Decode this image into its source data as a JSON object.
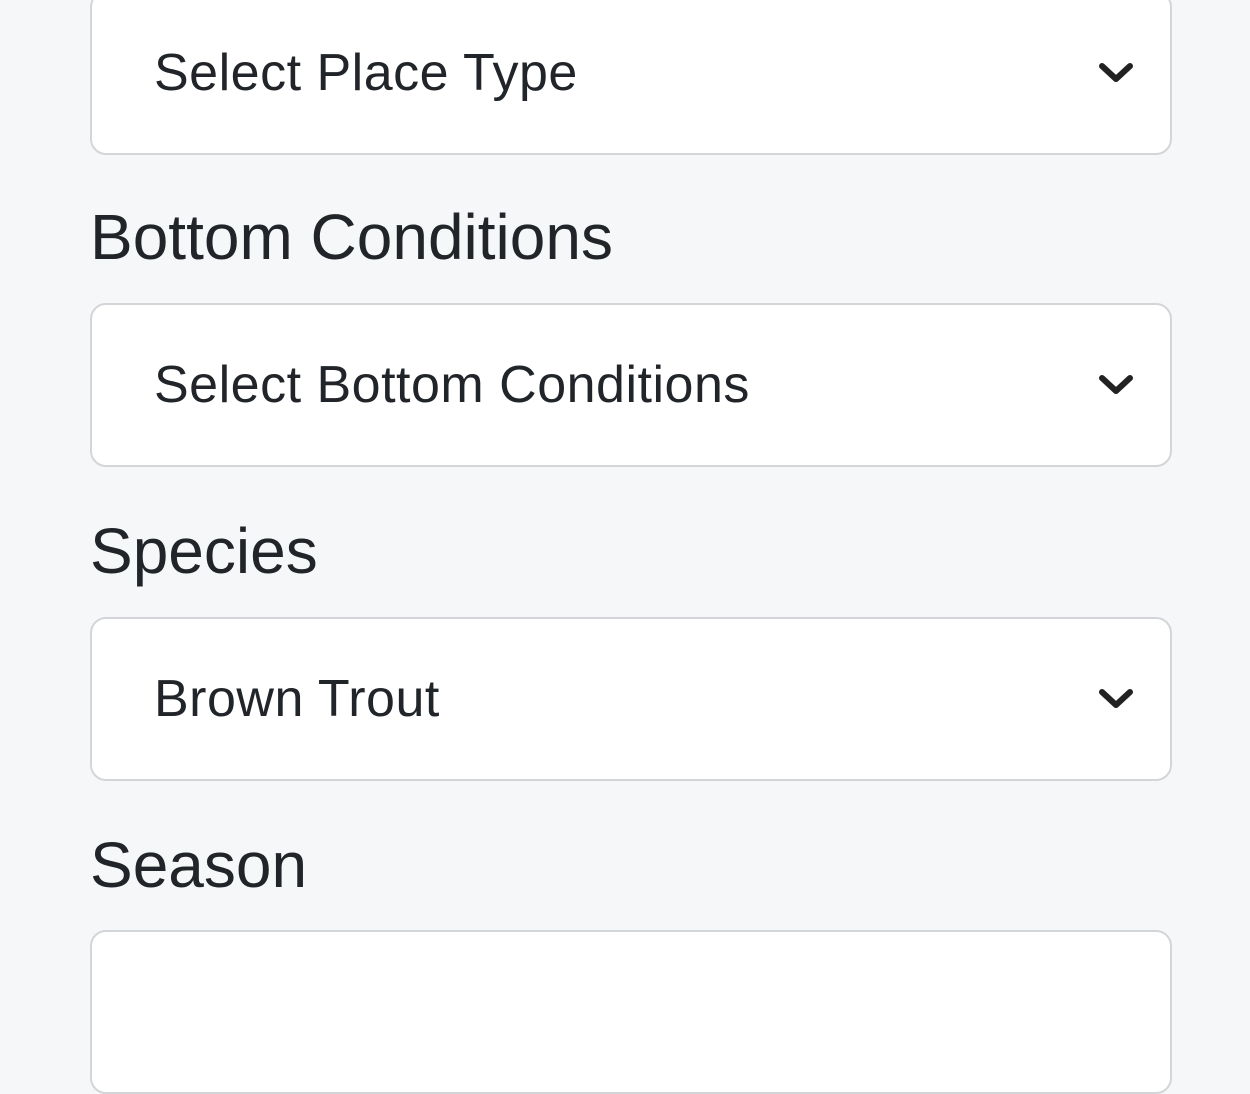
{
  "fields": [
    {
      "label": "",
      "value": "Select Place Type",
      "icon": "chevron-down-icon"
    },
    {
      "label": "Bottom Conditions",
      "value": "Select Bottom Conditions",
      "icon": "chevron-down-icon"
    },
    {
      "label": "Species",
      "value": "Brown Trout",
      "icon": "chevron-down-icon"
    },
    {
      "label": "Season",
      "value": "",
      "icon": "chevron-down-icon"
    }
  ]
}
